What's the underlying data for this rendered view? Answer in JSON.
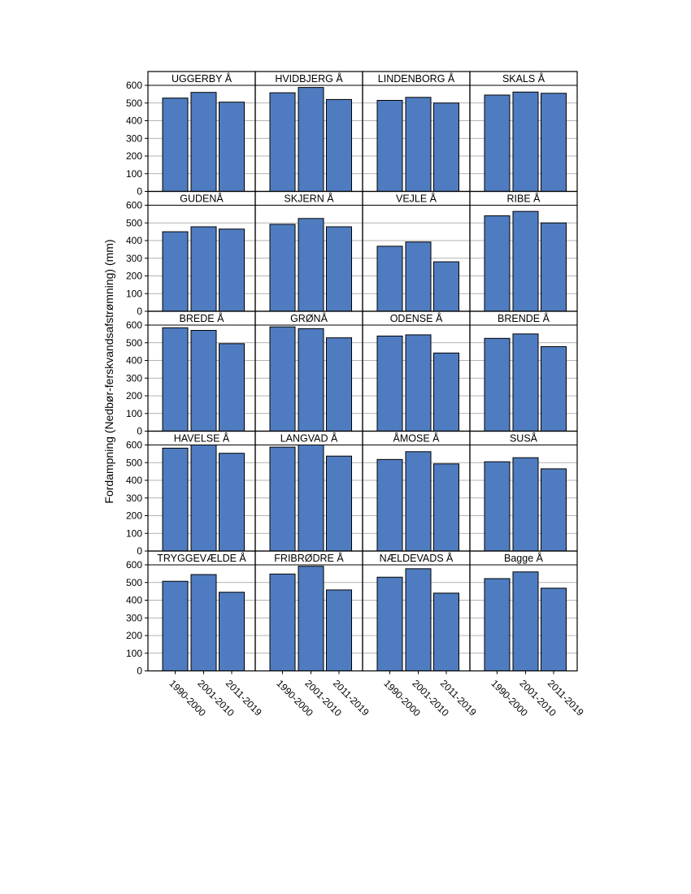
{
  "chart_data": {
    "type": "bar",
    "layout": "faceted grid, 5 rows x 4 columns",
    "ylabel": "Fordampning (Nedbør-ferskvandsafstrømning) (mm)",
    "xlabel": "",
    "ylim": [
      0,
      600
    ],
    "yticks": [
      0,
      100,
      200,
      300,
      400,
      500,
      600
    ],
    "categories": [
      "1990-2000",
      "2001-2010",
      "2011-2019"
    ],
    "bar_color": "#4f7cc0",
    "grid": true,
    "panels": [
      {
        "name": "UGGERBY Å",
        "values": [
          528,
          560,
          505
        ]
      },
      {
        "name": "HVIDBJERG Å",
        "values": [
          558,
          588,
          520
        ]
      },
      {
        "name": "LINDENBORG Å",
        "values": [
          515,
          532,
          500
        ]
      },
      {
        "name": "SKALS Å",
        "values": [
          545,
          562,
          555
        ]
      },
      {
        "name": "GUDENÅ",
        "values": [
          450,
          478,
          465
        ]
      },
      {
        "name": "SKJERN Å",
        "values": [
          492,
          525,
          478
        ]
      },
      {
        "name": "VEJLE Å",
        "values": [
          368,
          392,
          280
        ]
      },
      {
        "name": "RIBE Å",
        "values": [
          540,
          565,
          500
        ]
      },
      {
        "name": "BREDE Å",
        "values": [
          585,
          570,
          495
        ]
      },
      {
        "name": "GRØNÅ",
        "values": [
          590,
          580,
          528
        ]
      },
      {
        "name": "ODENSE Å",
        "values": [
          538,
          545,
          442
        ]
      },
      {
        "name": "BRENDE Å",
        "values": [
          525,
          550,
          478
        ]
      },
      {
        "name": "HAVELSE Å",
        "values": [
          582,
          610,
          553
        ]
      },
      {
        "name": "LANGVAD Å",
        "values": [
          588,
          610,
          537
        ]
      },
      {
        "name": "ÅMOSE Å",
        "values": [
          518,
          562,
          493
        ]
      },
      {
        "name": "SUSÅ",
        "values": [
          505,
          528,
          465
        ]
      },
      {
        "name": "TRYGGEVÆLDE Å",
        "values": [
          507,
          545,
          445
        ]
      },
      {
        "name": "FRIBRØDRE Å",
        "values": [
          548,
          592,
          458
        ]
      },
      {
        "name": "NÆLDEVADS Å",
        "values": [
          530,
          578,
          440
        ]
      },
      {
        "name": "Bagge Å",
        "values": [
          522,
          560,
          468
        ]
      }
    ]
  }
}
